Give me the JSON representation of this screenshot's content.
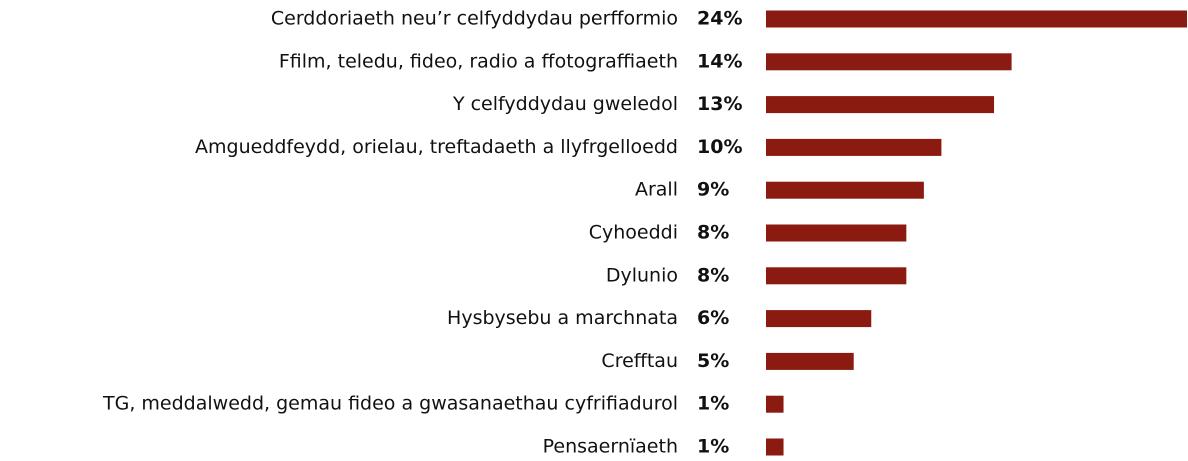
{
  "chart_data": {
    "type": "bar",
    "orientation": "horizontal",
    "categories": [
      "Cerddoriaeth neu’r celfyddydau perfformio",
      "Ffilm, teledu, fideo, radio a ffotograffiaeth",
      "Y celfyddydau gweledol",
      "Amgueddfeydd, orielau, treftadaeth a llyfrgelloedd",
      "Arall",
      "Cyhoeddi",
      "Dylunio",
      "Hysbysebu a marchnata",
      "Crefftau",
      "TG, meddalwedd, gemau fideo a gwasanaethau cyfrifiadurol",
      "Pensaernïaeth"
    ],
    "values": [
      24,
      14,
      13,
      10,
      9,
      8,
      8,
      6,
      5,
      1,
      1
    ],
    "value_labels": [
      "24%",
      "14%",
      "13%",
      "10%",
      "9%",
      "8%",
      "8%",
      "6%",
      "5%",
      "1%",
      "1%"
    ],
    "color": "#8b1a10"
  }
}
